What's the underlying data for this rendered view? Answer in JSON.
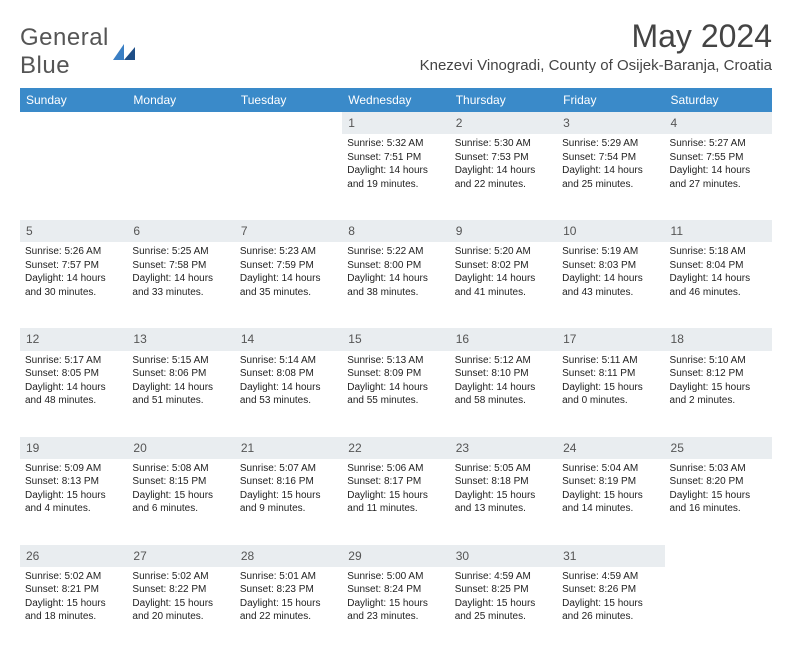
{
  "brand": {
    "line1": "General",
    "line2": "Blue"
  },
  "title": "May 2024",
  "location": "Knezevi Vinogradi, County of Osijek-Baranja, Croatia",
  "colors": {
    "header_bg": "#3a8ac9",
    "header_fg": "#ffffff",
    "daynum_bg": "#e9edf0",
    "text": "#2b2b2b",
    "logo_accent": "#3a7fc4"
  },
  "weekdays": [
    "Sunday",
    "Monday",
    "Tuesday",
    "Wednesday",
    "Thursday",
    "Friday",
    "Saturday"
  ],
  "weeks": [
    [
      null,
      null,
      null,
      {
        "n": "1",
        "sr": "5:32 AM",
        "ss": "7:51 PM",
        "dl": "14 hours and 19 minutes."
      },
      {
        "n": "2",
        "sr": "5:30 AM",
        "ss": "7:53 PM",
        "dl": "14 hours and 22 minutes."
      },
      {
        "n": "3",
        "sr": "5:29 AM",
        "ss": "7:54 PM",
        "dl": "14 hours and 25 minutes."
      },
      {
        "n": "4",
        "sr": "5:27 AM",
        "ss": "7:55 PM",
        "dl": "14 hours and 27 minutes."
      }
    ],
    [
      {
        "n": "5",
        "sr": "5:26 AM",
        "ss": "7:57 PM",
        "dl": "14 hours and 30 minutes."
      },
      {
        "n": "6",
        "sr": "5:25 AM",
        "ss": "7:58 PM",
        "dl": "14 hours and 33 minutes."
      },
      {
        "n": "7",
        "sr": "5:23 AM",
        "ss": "7:59 PM",
        "dl": "14 hours and 35 minutes."
      },
      {
        "n": "8",
        "sr": "5:22 AM",
        "ss": "8:00 PM",
        "dl": "14 hours and 38 minutes."
      },
      {
        "n": "9",
        "sr": "5:20 AM",
        "ss": "8:02 PM",
        "dl": "14 hours and 41 minutes."
      },
      {
        "n": "10",
        "sr": "5:19 AM",
        "ss": "8:03 PM",
        "dl": "14 hours and 43 minutes."
      },
      {
        "n": "11",
        "sr": "5:18 AM",
        "ss": "8:04 PM",
        "dl": "14 hours and 46 minutes."
      }
    ],
    [
      {
        "n": "12",
        "sr": "5:17 AM",
        "ss": "8:05 PM",
        "dl": "14 hours and 48 minutes."
      },
      {
        "n": "13",
        "sr": "5:15 AM",
        "ss": "8:06 PM",
        "dl": "14 hours and 51 minutes."
      },
      {
        "n": "14",
        "sr": "5:14 AM",
        "ss": "8:08 PM",
        "dl": "14 hours and 53 minutes."
      },
      {
        "n": "15",
        "sr": "5:13 AM",
        "ss": "8:09 PM",
        "dl": "14 hours and 55 minutes."
      },
      {
        "n": "16",
        "sr": "5:12 AM",
        "ss": "8:10 PM",
        "dl": "14 hours and 58 minutes."
      },
      {
        "n": "17",
        "sr": "5:11 AM",
        "ss": "8:11 PM",
        "dl": "15 hours and 0 minutes."
      },
      {
        "n": "18",
        "sr": "5:10 AM",
        "ss": "8:12 PM",
        "dl": "15 hours and 2 minutes."
      }
    ],
    [
      {
        "n": "19",
        "sr": "5:09 AM",
        "ss": "8:13 PM",
        "dl": "15 hours and 4 minutes."
      },
      {
        "n": "20",
        "sr": "5:08 AM",
        "ss": "8:15 PM",
        "dl": "15 hours and 6 minutes."
      },
      {
        "n": "21",
        "sr": "5:07 AM",
        "ss": "8:16 PM",
        "dl": "15 hours and 9 minutes."
      },
      {
        "n": "22",
        "sr": "5:06 AM",
        "ss": "8:17 PM",
        "dl": "15 hours and 11 minutes."
      },
      {
        "n": "23",
        "sr": "5:05 AM",
        "ss": "8:18 PM",
        "dl": "15 hours and 13 minutes."
      },
      {
        "n": "24",
        "sr": "5:04 AM",
        "ss": "8:19 PM",
        "dl": "15 hours and 14 minutes."
      },
      {
        "n": "25",
        "sr": "5:03 AM",
        "ss": "8:20 PM",
        "dl": "15 hours and 16 minutes."
      }
    ],
    [
      {
        "n": "26",
        "sr": "5:02 AM",
        "ss": "8:21 PM",
        "dl": "15 hours and 18 minutes."
      },
      {
        "n": "27",
        "sr": "5:02 AM",
        "ss": "8:22 PM",
        "dl": "15 hours and 20 minutes."
      },
      {
        "n": "28",
        "sr": "5:01 AM",
        "ss": "8:23 PM",
        "dl": "15 hours and 22 minutes."
      },
      {
        "n": "29",
        "sr": "5:00 AM",
        "ss": "8:24 PM",
        "dl": "15 hours and 23 minutes."
      },
      {
        "n": "30",
        "sr": "4:59 AM",
        "ss": "8:25 PM",
        "dl": "15 hours and 25 minutes."
      },
      {
        "n": "31",
        "sr": "4:59 AM",
        "ss": "8:26 PM",
        "dl": "15 hours and 26 minutes."
      },
      null
    ]
  ],
  "labels": {
    "sunrise": "Sunrise:",
    "sunset": "Sunset:",
    "daylight": "Daylight:"
  }
}
